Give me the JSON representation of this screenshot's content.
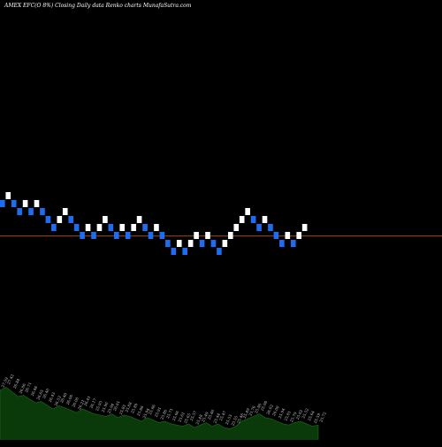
{
  "header": {
    "title": "AMEX  EFC(O 8%)  Closing Daily data  Renko  charts MunafaSutra.com"
  },
  "chart_data": {
    "type": "renko",
    "title": "AMEX  EFC(O 8%)  Closing Daily data  Renko  charts MunafaSutra.com",
    "brick_size": 0.25,
    "up_color": "#ffffff",
    "down_color": "#1e6cf0",
    "reference_line": {
      "value": 25.62,
      "color": "#b5532a"
    },
    "bricks": [
      {
        "dir": "down",
        "value": 26.75
      },
      {
        "dir": "up",
        "value": 27.0
      },
      {
        "dir": "down",
        "value": 26.75
      },
      {
        "dir": "down",
        "value": 26.5
      },
      {
        "dir": "up",
        "value": 26.75
      },
      {
        "dir": "down",
        "value": 26.5
      },
      {
        "dir": "up",
        "value": 26.75
      },
      {
        "dir": "down",
        "value": 26.5
      },
      {
        "dir": "down",
        "value": 26.25
      },
      {
        "dir": "down",
        "value": 26.0
      },
      {
        "dir": "up",
        "value": 26.25
      },
      {
        "dir": "up",
        "value": 26.5
      },
      {
        "dir": "down",
        "value": 26.25
      },
      {
        "dir": "down",
        "value": 26.0
      },
      {
        "dir": "down",
        "value": 25.75
      },
      {
        "dir": "up",
        "value": 26.0
      },
      {
        "dir": "down",
        "value": 25.75
      },
      {
        "dir": "up",
        "value": 26.0
      },
      {
        "dir": "up",
        "value": 26.25
      },
      {
        "dir": "down",
        "value": 26.0
      },
      {
        "dir": "down",
        "value": 25.75
      },
      {
        "dir": "up",
        "value": 26.0
      },
      {
        "dir": "down",
        "value": 25.75
      },
      {
        "dir": "up",
        "value": 26.0
      },
      {
        "dir": "up",
        "value": 26.25
      },
      {
        "dir": "down",
        "value": 26.0
      },
      {
        "dir": "down",
        "value": 25.75
      },
      {
        "dir": "up",
        "value": 26.0
      },
      {
        "dir": "down",
        "value": 25.75
      },
      {
        "dir": "down",
        "value": 25.5
      },
      {
        "dir": "down",
        "value": 25.25
      },
      {
        "dir": "up",
        "value": 25.5
      },
      {
        "dir": "down",
        "value": 25.25
      },
      {
        "dir": "up",
        "value": 25.5
      },
      {
        "dir": "up",
        "value": 25.75
      },
      {
        "dir": "down",
        "value": 25.5
      },
      {
        "dir": "up",
        "value": 25.75
      },
      {
        "dir": "down",
        "value": 25.5
      },
      {
        "dir": "down",
        "value": 25.25
      },
      {
        "dir": "up",
        "value": 25.5
      },
      {
        "dir": "up",
        "value": 25.75
      },
      {
        "dir": "up",
        "value": 26.0
      },
      {
        "dir": "up",
        "value": 26.25
      },
      {
        "dir": "up",
        "value": 26.5
      },
      {
        "dir": "down",
        "value": 26.25
      },
      {
        "dir": "down",
        "value": 26.0
      },
      {
        "dir": "up",
        "value": 26.25
      },
      {
        "dir": "down",
        "value": 26.0
      },
      {
        "dir": "down",
        "value": 25.75
      },
      {
        "dir": "down",
        "value": 25.5
      },
      {
        "dir": "up",
        "value": 25.75
      },
      {
        "dir": "down",
        "value": 25.5
      },
      {
        "dir": "up",
        "value": 25.75
      },
      {
        "dir": "up",
        "value": 26.0
      }
    ],
    "volume_area": {
      "color": "#0a3a0a",
      "values": [
        0.8,
        0.85,
        0.78,
        0.7,
        0.72,
        0.66,
        0.6,
        0.62,
        0.56,
        0.5,
        0.55,
        0.52,
        0.48,
        0.44,
        0.5,
        0.46,
        0.42,
        0.4,
        0.38,
        0.42,
        0.36,
        0.4,
        0.38,
        0.34,
        0.3,
        0.36,
        0.32,
        0.28,
        0.3,
        0.26,
        0.24,
        0.22,
        0.26,
        0.2,
        0.24,
        0.28,
        0.22,
        0.26,
        0.2,
        0.18,
        0.22,
        0.3,
        0.34,
        0.38,
        0.42,
        0.36,
        0.34,
        0.3,
        0.26,
        0.24,
        0.28,
        0.3,
        0.26,
        0.22,
        0.24
      ]
    },
    "price_labels": [
      "27.59",
      "27.42",
      "26.84",
      "26.86",
      "26.71",
      "26.48",
      "26.65",
      "26.40",
      "26.43",
      "26.53",
      "26.40",
      "26.06",
      "26.00",
      "26.21",
      "26.41",
      "26.17",
      "25.93",
      "25.90",
      "25.94",
      "26.01",
      "25.85",
      "25.88",
      "25.89",
      "25.88",
      "25.94",
      "25.86",
      "25.91",
      "25.86",
      "25.71",
      "25.66",
      "25.61",
      "25.65",
      "25.57",
      "25.48",
      "25.49",
      "25.46",
      "25.44",
      "25.47",
      "25.53",
      "25.55",
      "25.46",
      "25.49",
      "25.76",
      "25.86",
      "25.98",
      "26.02",
      "26.00",
      "25.94",
      "25.81",
      "25.79",
      "25.62",
      "25.52",
      "25.64",
      "25.59",
      "25.72"
    ]
  }
}
